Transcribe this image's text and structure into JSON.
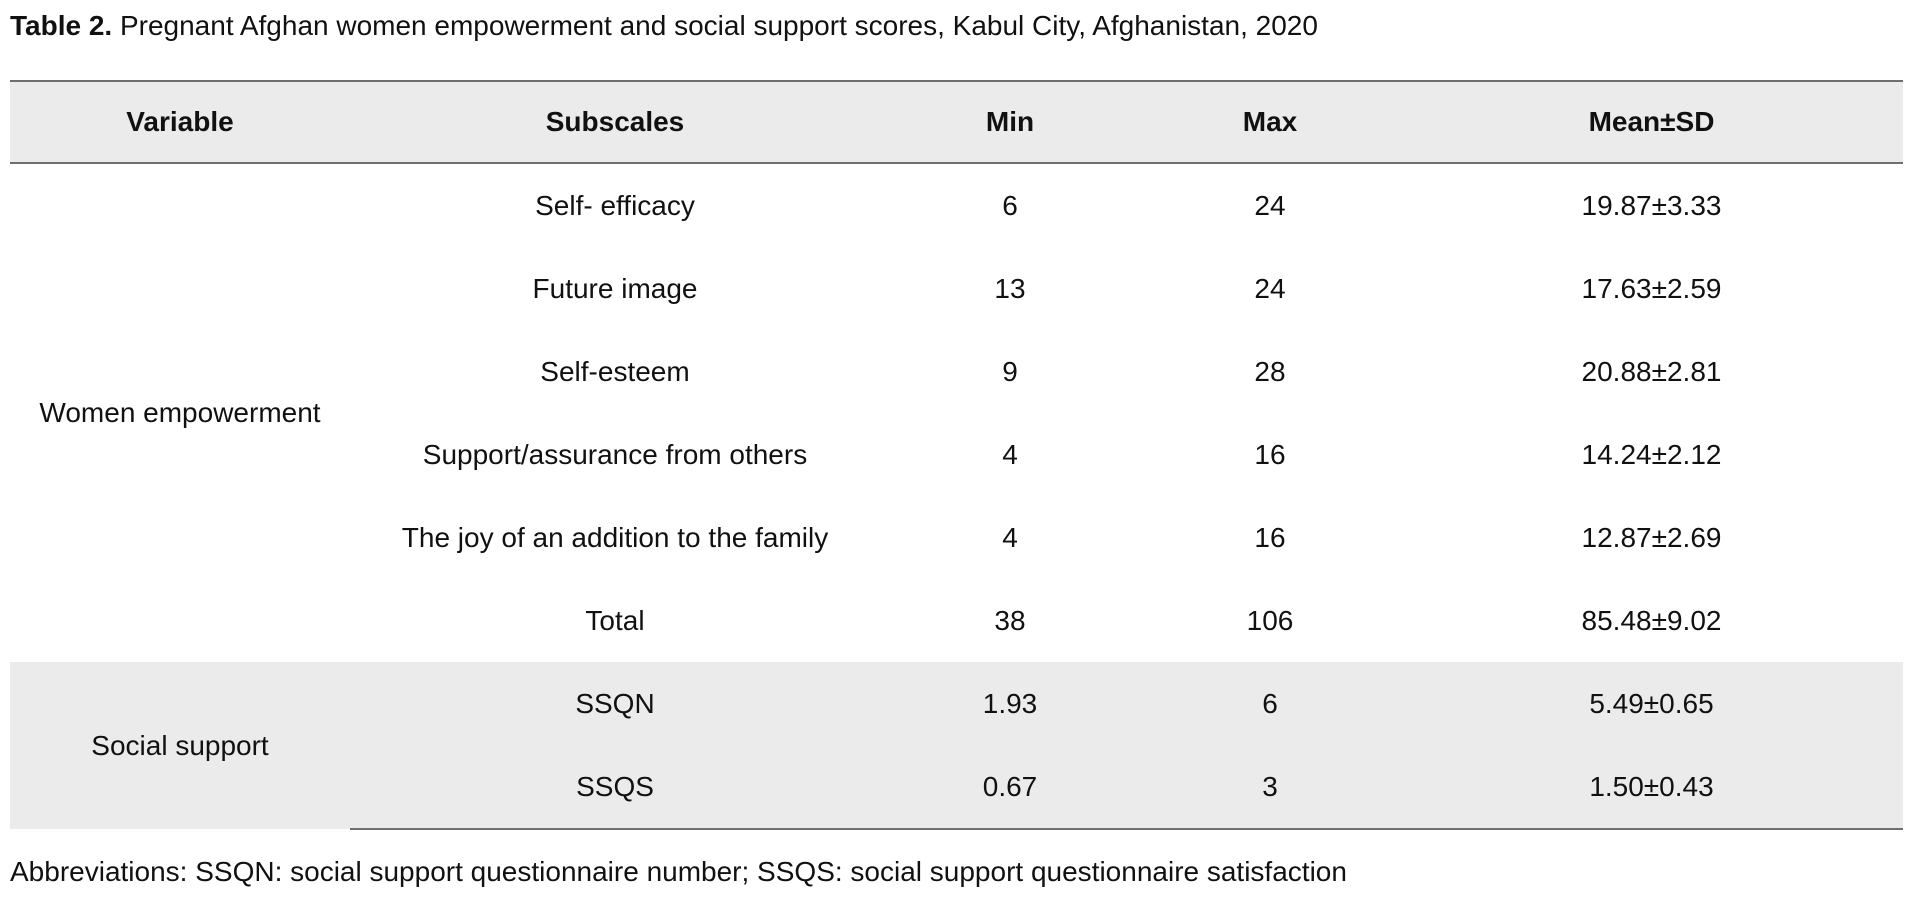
{
  "caption": {
    "label": "Table 2.",
    "text": "Pregnant Afghan women empowerment and social support scores, Kabul City, Afghanistan, 2020"
  },
  "table": {
    "headers": [
      "Variable",
      "Subscales",
      "Min",
      "Max",
      "Mean±SD"
    ],
    "groups": [
      {
        "variable": "Women empowerment",
        "rows": [
          {
            "subscale": "Self- efficacy",
            "min": "6",
            "max": "24",
            "mean_sd": "19.87±3.33"
          },
          {
            "subscale": "Future image",
            "min": "13",
            "max": "24",
            "mean_sd": "17.63±2.59"
          },
          {
            "subscale": "Self-esteem",
            "min": "9",
            "max": "28",
            "mean_sd": "20.88±2.81"
          },
          {
            "subscale": "Support/assurance from others",
            "min": "4",
            "max": "16",
            "mean_sd": "14.24±2.12"
          },
          {
            "subscale": "The joy of an addition to the family",
            "min": "4",
            "max": "16",
            "mean_sd": "12.87±2.69"
          },
          {
            "subscale": "Total",
            "min": "38",
            "max": "106",
            "mean_sd": "85.48±9.02"
          }
        ]
      },
      {
        "variable": "Social support",
        "rows": [
          {
            "subscale": "SSQN",
            "min": "1.93",
            "max": "6",
            "mean_sd": "5.49±0.65"
          },
          {
            "subscale": "SSQS",
            "min": "0.67",
            "max": "3",
            "mean_sd": "1.50±0.43"
          }
        ]
      }
    ]
  },
  "footnote": "Abbreviations: SSQN: social support questionnaire number; SSQS: social support questionnaire satisfaction"
}
